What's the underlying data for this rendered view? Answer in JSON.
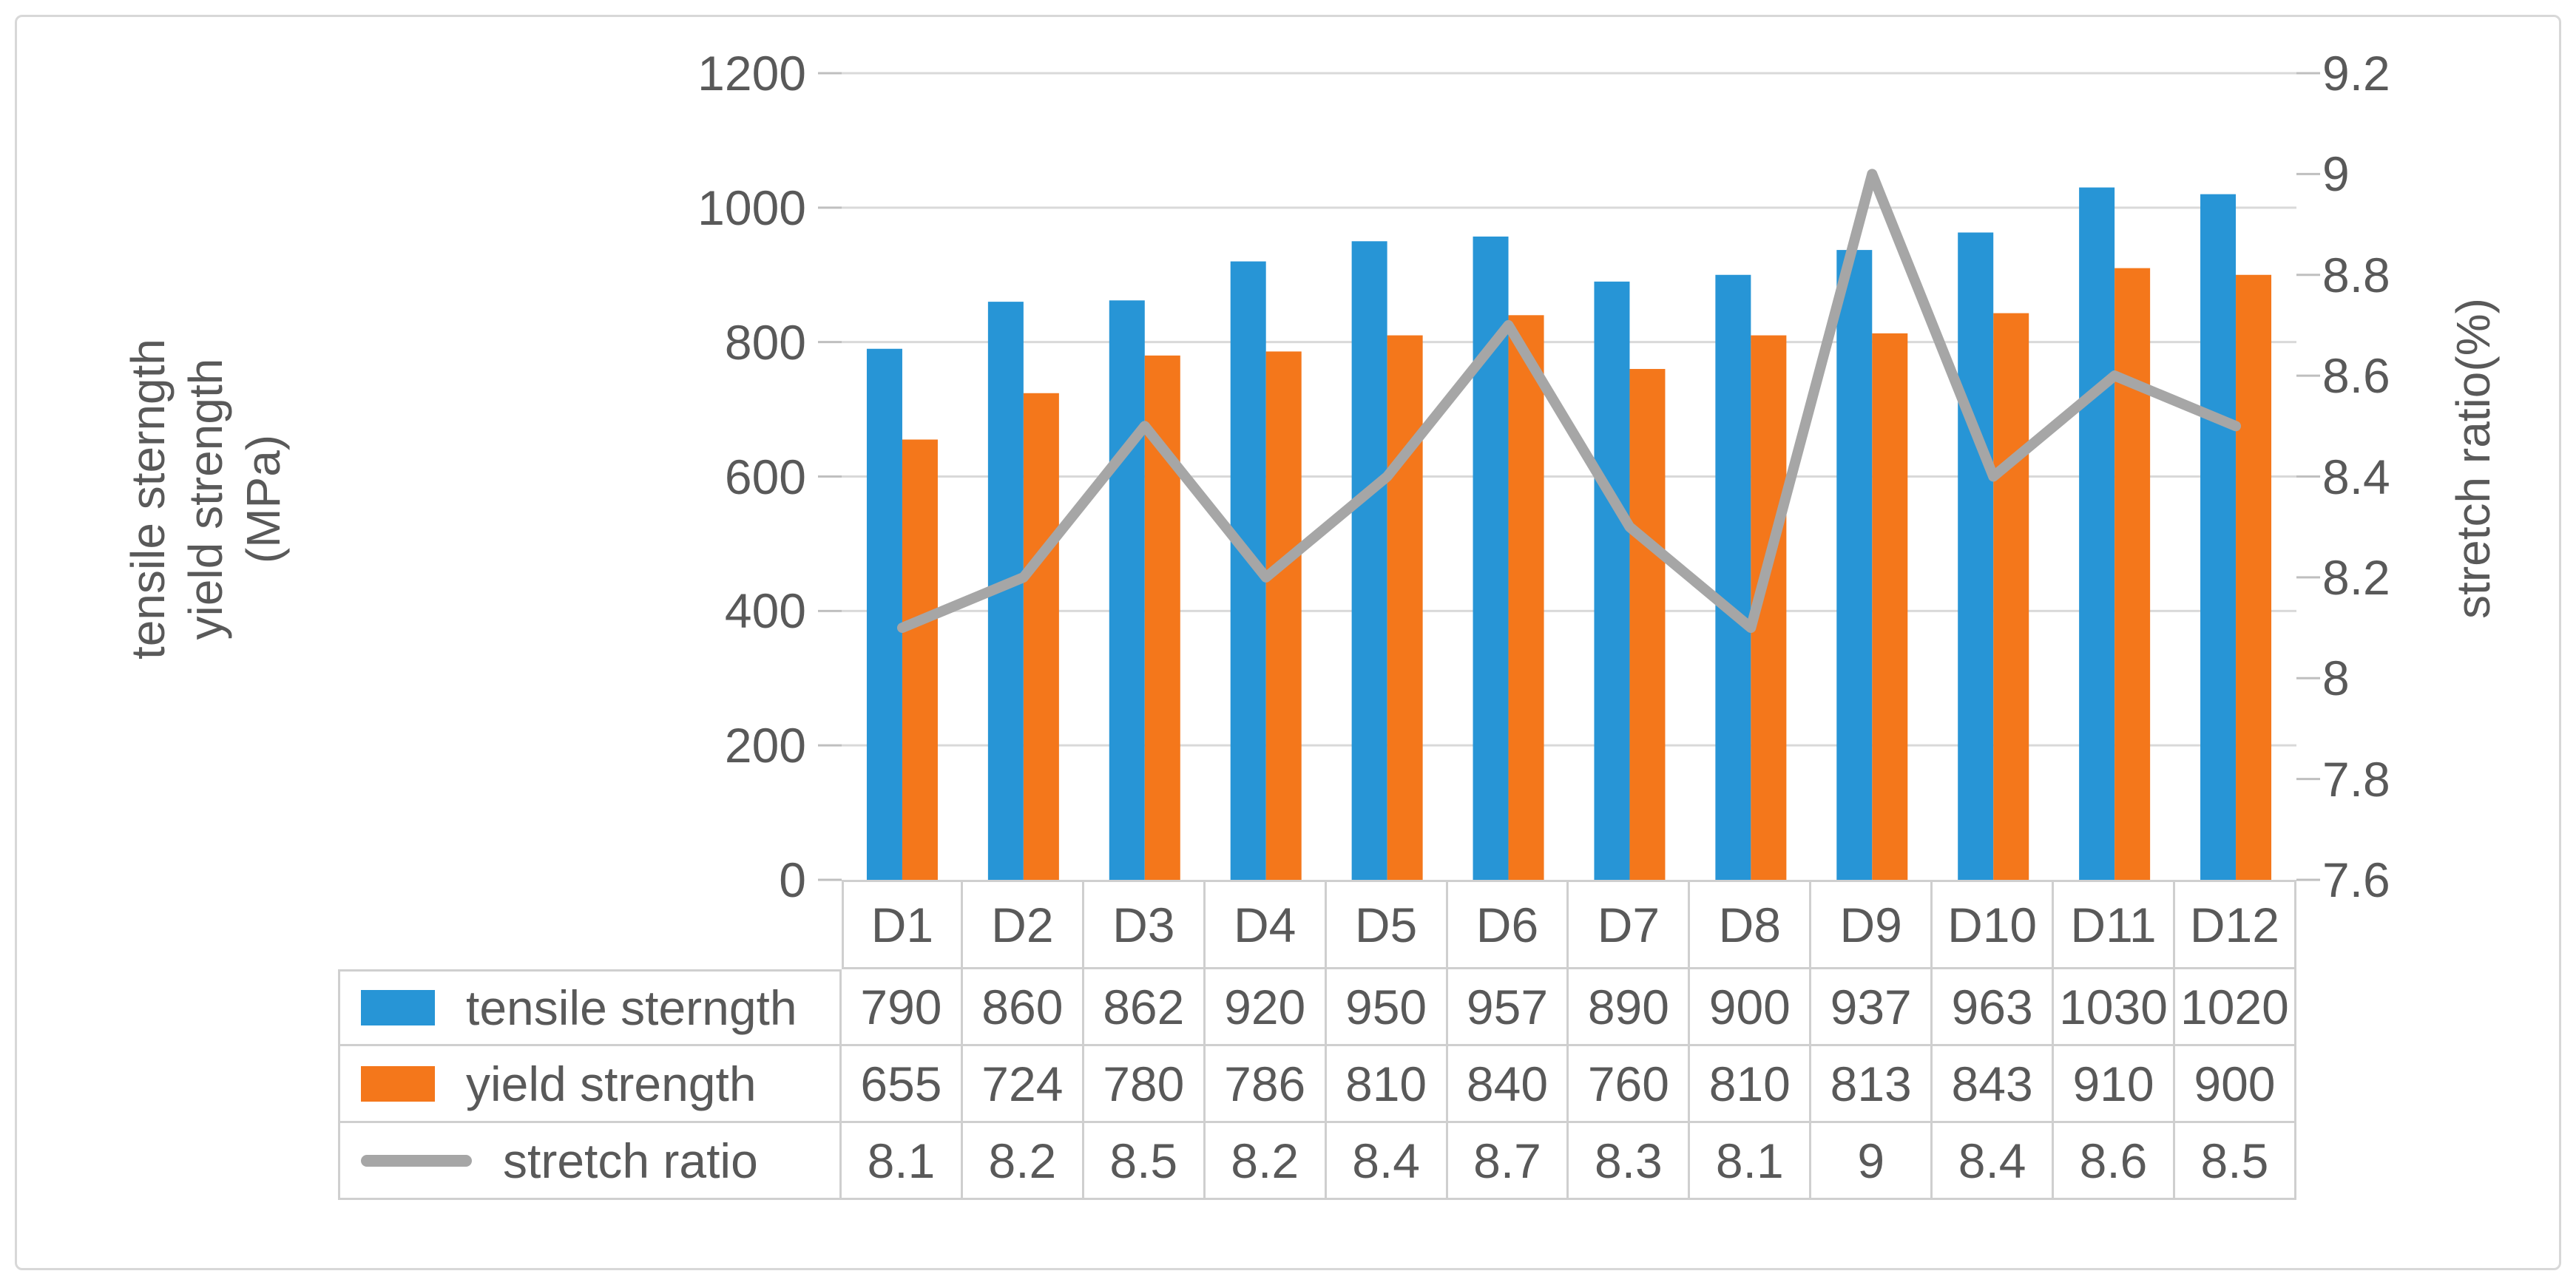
{
  "chart_data": {
    "type": "combo-bar-line",
    "categories": [
      "D1",
      "D2",
      "D3",
      "D4",
      "D5",
      "D6",
      "D7",
      "D8",
      "D9",
      "D10",
      "D11",
      "D12"
    ],
    "series": [
      {
        "name": "tensile sterngth",
        "type": "bar",
        "axis": "left",
        "color": "#2795d6",
        "values": [
          790,
          860,
          862,
          920,
          950,
          957,
          890,
          900,
          937,
          963,
          1030,
          1020
        ]
      },
      {
        "name": "yield strength",
        "type": "bar",
        "axis": "left",
        "color": "#f4771b",
        "values": [
          655,
          724,
          780,
          786,
          810,
          840,
          760,
          810,
          813,
          843,
          910,
          900
        ]
      },
      {
        "name": "stretch ratio",
        "type": "line",
        "axis": "right",
        "color": "#a6a6a6",
        "values": [
          8.1,
          8.2,
          8.5,
          8.2,
          8.4,
          8.7,
          8.3,
          8.1,
          9,
          8.4,
          8.6,
          8.5
        ]
      }
    ],
    "left_axis": {
      "title_lines": [
        "tensile sterngth",
        "yield strength",
        "(MPa)"
      ],
      "min": 0,
      "max": 1200,
      "step": 200,
      "tick_labels": [
        "1200",
        "1000",
        "800",
        "600",
        "400",
        "200",
        "0"
      ]
    },
    "right_axis": {
      "title": "stretch ratio(%)",
      "min": 7.6,
      "max": 9.2,
      "step": 0.2,
      "tick_labels": [
        "9.2",
        "9",
        "8.8",
        "8.6",
        "8.4",
        "8.2",
        "8",
        "7.8",
        "7.6"
      ]
    },
    "grid": true,
    "legend_position": "data-table-left",
    "title": ""
  },
  "colors": {
    "text": "#595959",
    "gridline": "#d9d9d9",
    "tick": "#bfbfbf",
    "table_border": "#cfcfcf",
    "frame_border": "#d8d8d8",
    "background": "#ffffff"
  }
}
